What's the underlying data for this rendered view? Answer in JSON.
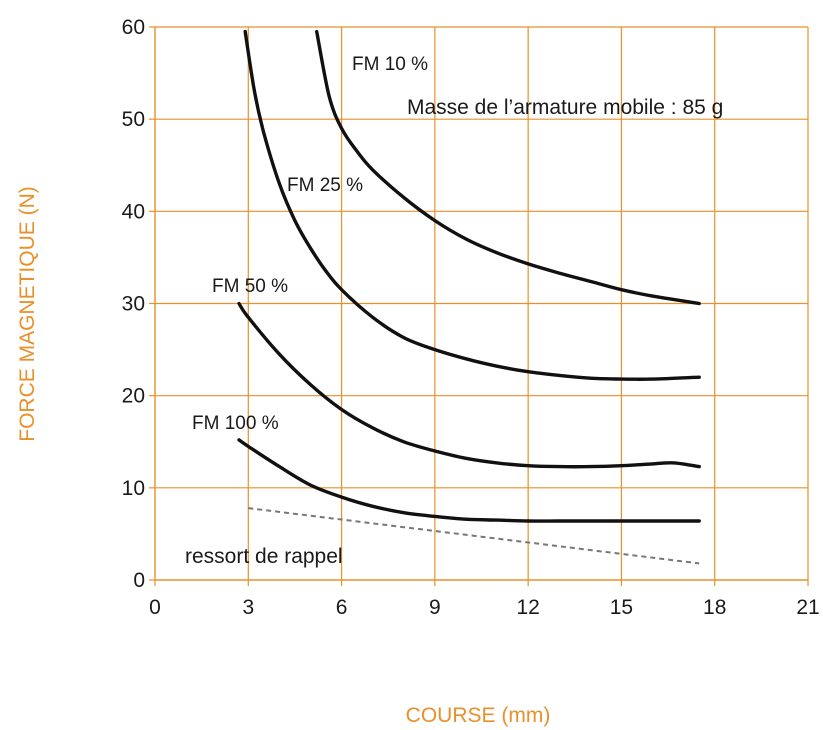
{
  "chart_data": {
    "type": "line",
    "xlabel": "COURSE (mm)",
    "ylabel": "FORCE MAGNETIQUE  (N)",
    "xlim": [
      0,
      21
    ],
    "ylim": [
      0,
      60
    ],
    "x_ticks": [
      0,
      3,
      6,
      9,
      12,
      15,
      18,
      21
    ],
    "y_ticks": [
      0,
      10,
      20,
      30,
      40,
      50,
      60
    ],
    "x_tick_labels": [
      "0",
      "3",
      "6",
      "9",
      "12",
      "15",
      "18",
      "21"
    ],
    "y_tick_labels": [
      "0",
      "10",
      "20",
      "30",
      "40",
      "50",
      "60"
    ],
    "grid": true,
    "colors": {
      "grid": "#e8902a",
      "series": "#111111",
      "spring": "#777777",
      "axis_title": "#e8902a"
    },
    "series": [
      {
        "name": "FM 10 %",
        "x": [
          5.2,
          5.6,
          6.0,
          6.5,
          7.0,
          8.0,
          9.0,
          10.0,
          11.0,
          12.0,
          13.0,
          14.0,
          15.0,
          16.0,
          17.5
        ],
        "y": [
          59.5,
          52.5,
          49.0,
          46.5,
          44.5,
          41.5,
          39.0,
          37.0,
          35.5,
          34.3,
          33.3,
          32.4,
          31.5,
          30.8,
          30.0
        ]
      },
      {
        "name": "FM 25 %",
        "x": [
          2.9,
          3.2,
          3.5,
          4.0,
          4.5,
          5.0,
          5.5,
          6.0,
          7.0,
          8.0,
          9.0,
          10.0,
          11.0,
          12.0,
          13.0,
          14.0,
          15.0,
          16.0,
          17.5
        ],
        "y": [
          59.5,
          53.0,
          48.5,
          43.0,
          39.0,
          36.0,
          33.5,
          31.5,
          28.5,
          26.3,
          25.0,
          24.0,
          23.2,
          22.6,
          22.2,
          21.9,
          21.8,
          21.8,
          22.0
        ]
      },
      {
        "name": "FM 50 %",
        "x": [
          2.7,
          3.0,
          4.0,
          5.0,
          6.0,
          7.0,
          8.0,
          9.0,
          10.0,
          11.0,
          12.0,
          13.0,
          14.0,
          15.0,
          16.0,
          16.7,
          17.5
        ],
        "y": [
          30.0,
          28.5,
          24.5,
          21.2,
          18.5,
          16.5,
          15.0,
          14.0,
          13.2,
          12.7,
          12.4,
          12.3,
          12.3,
          12.4,
          12.6,
          12.7,
          12.3
        ]
      },
      {
        "name": "FM 100 %",
        "x": [
          2.7,
          3.0,
          4.0,
          5.0,
          6.0,
          7.0,
          8.0,
          9.0,
          10.0,
          11.0,
          12.0,
          13.0,
          14.0,
          15.0,
          16.0,
          17.5
        ],
        "y": [
          15.2,
          14.5,
          12.3,
          10.3,
          9.0,
          8.0,
          7.3,
          6.9,
          6.6,
          6.5,
          6.4,
          6.4,
          6.4,
          6.4,
          6.4,
          6.4
        ]
      }
    ],
    "spring": {
      "name": "ressort de rappel",
      "x": [
        3.0,
        17.5
      ],
      "y": [
        7.8,
        1.8
      ]
    },
    "annotations": [
      {
        "text": "Masse de l’armature mobile : 85 g"
      }
    ]
  }
}
